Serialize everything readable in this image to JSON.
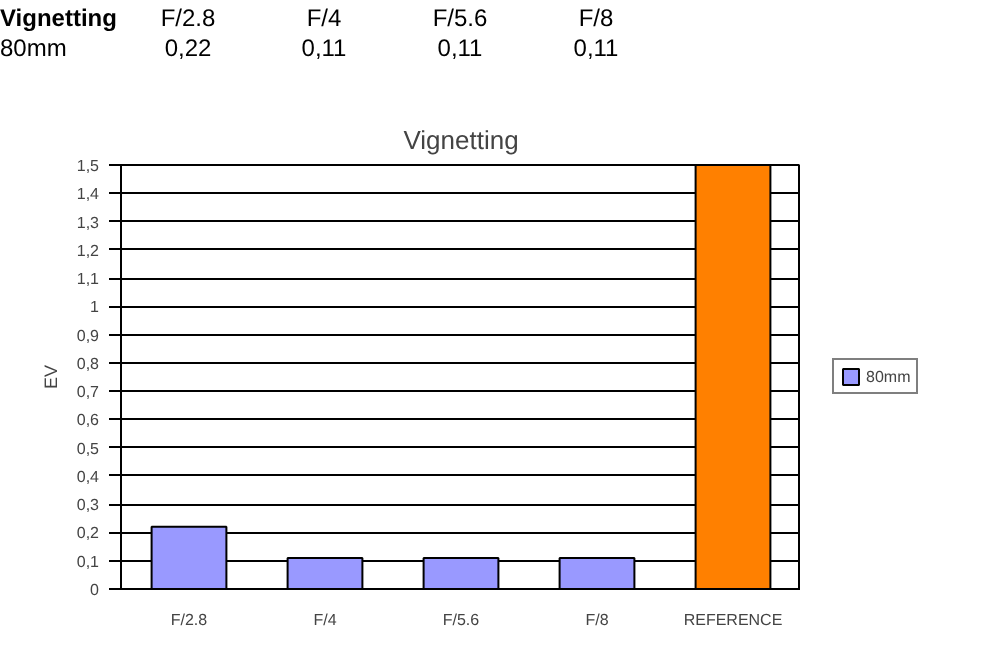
{
  "chart_data": {
    "type": "bar",
    "title": "Vignetting",
    "ylabel": "EV",
    "annotations": [
      "Vignetting"
    ],
    "categories": [
      "F/2.8",
      "F/4",
      "F/5.6",
      "F/8",
      "REFERENCE"
    ],
    "series": [
      {
        "name": "80mm",
        "colors": [
          "#9999ff",
          "#9999ff",
          "#9999ff",
          "#9999ff",
          "#ff8000"
        ],
        "values": [
          0.22,
          0.11,
          0.11,
          0.11,
          1.5
        ],
        "value_labels": [
          "0,22",
          "0,11",
          "0,11",
          "0,11",
          null
        ]
      }
    ],
    "ylim": [
      0,
      1.5
    ],
    "yticks": [
      0,
      {
        "value": 0.1,
        "label": "0,1"
      },
      {
        "value": 0.2,
        "label": "0,2"
      },
      {
        "value": 0.3,
        "label": "0,3"
      },
      {
        "value": 0.4,
        "label": "0,4"
      },
      {
        "value": 0.5,
        "label": "0,5"
      },
      {
        "value": 0.6,
        "label": "0,6"
      },
      {
        "value": 0.7,
        "label": "0,7"
      },
      {
        "value": 0.8,
        "label": "0,8"
      },
      {
        "value": 0.9,
        "label": "0,9"
      },
      1,
      {
        "value": 1.1,
        "label": "1,1"
      },
      {
        "value": 1.2,
        "label": "1,2"
      },
      {
        "value": 1.3,
        "label": "1,3"
      },
      {
        "value": 1.4,
        "label": "1,4"
      },
      {
        "value": 1.5,
        "label": "1,5"
      }
    ],
    "grid": "y",
    "legend": "right",
    "data_labels": true
  }
}
